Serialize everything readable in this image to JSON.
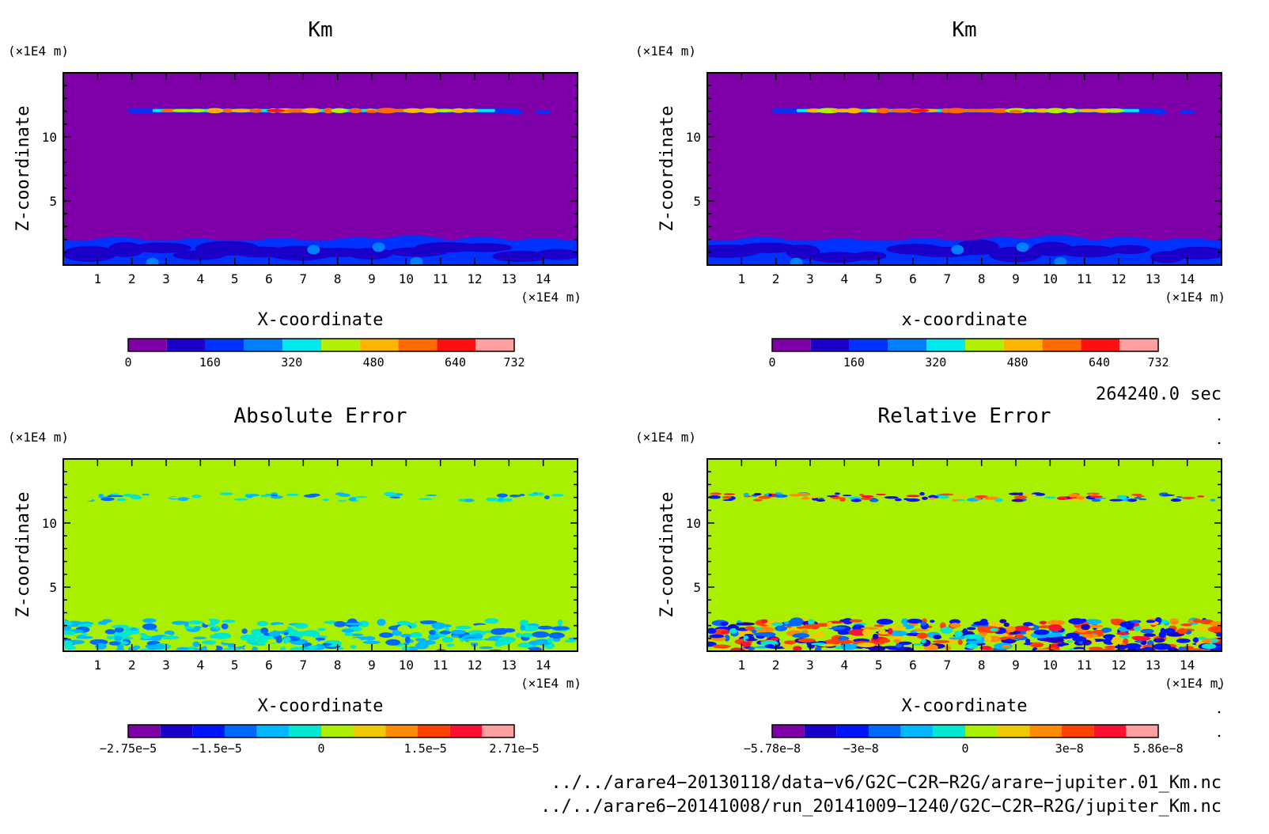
{
  "panels": [
    {
      "title": "Km",
      "xlabel": "X-coordinate",
      "ylabel": "Z-coordinate",
      "kind": "km",
      "colorbar": {
        "labels": [
          "0",
          "160",
          "320",
          "480",
          "640",
          "732"
        ]
      }
    },
    {
      "title": "Km",
      "xlabel": "x-coordinate",
      "ylabel": "Z-coordinate",
      "kind": "km",
      "colorbar": {
        "labels": [
          "0",
          "160",
          "320",
          "480",
          "640",
          "732"
        ]
      }
    },
    {
      "title": "Absolute Error",
      "xlabel": "X-coordinate",
      "ylabel": "Z-coordinate",
      "kind": "abs",
      "colorbar": {
        "labels": [
          "−2.75e−5",
          "−1.5e−5",
          "0",
          "1.5e−5",
          "2.71e−5"
        ]
      }
    },
    {
      "title": "Relative Error",
      "xlabel": "X-coordinate",
      "ylabel": "Z-coordinate",
      "kind": "rel",
      "colorbar": {
        "labels": [
          "−5.78e−8",
          "−3e−8",
          "0",
          "3e−8",
          "5.86e−8"
        ]
      }
    }
  ],
  "axis_unit": "(×1E4 m)",
  "xticks": [
    "1",
    "2",
    "3",
    "4",
    "5",
    "6",
    "7",
    "8",
    "9",
    "10",
    "11",
    "12",
    "13",
    "14"
  ],
  "yticks": [
    "5",
    "10"
  ],
  "time_label": "264240.0 sec",
  "file_paths": [
    "../../arare4−20130118/data−v6/G2C−C2R−R2G/arare−jupiter.01_Km.nc",
    "../../arare6−20141008/run_20141009−1240/G2C−C2R−R2G/jupiter_Km.nc"
  ],
  "colors": {
    "km_scale": [
      "#7f00a8",
      "#1a00c8",
      "#0032ff",
      "#0080ff",
      "#00e8f0",
      "#b0f000",
      "#ffb400",
      "#ff6a00",
      "#ff1010",
      "#ffa0a0"
    ],
    "err_scale": [
      "#7f00a8",
      "#1a00c8",
      "#0014ff",
      "#0068ff",
      "#00b8ff",
      "#00e8d0",
      "#a8f000",
      "#f0c800",
      "#ff8c00",
      "#ff4000",
      "#ff1030",
      "#ffa0a0"
    ],
    "abs_background": "#a8f000",
    "km_background": "#7f00a8"
  },
  "chart_data": [
    {
      "type": "heatmap",
      "title": "Km",
      "xlabel": "X-coordinate",
      "ylabel": "Z-coordinate",
      "x_unit": "(×1E4 m)",
      "y_unit": "(×1E4 m)",
      "xlim": [
        0,
        15
      ],
      "ylim": [
        0,
        15
      ],
      "colorbar": {
        "min": 0,
        "max": 732,
        "ticks": [
          0,
          160,
          320,
          480,
          640,
          732
        ]
      },
      "features": [
        {
          "z_range": [
            0,
            2
          ],
          "value_range": [
            80,
            320
          ],
          "description": ""
        },
        {
          "z_range": [
            11.5,
            12.3
          ],
          "value_range": [
            80,
            732
          ],
          "description": ""
        }
      ]
    },
    {
      "type": "heatmap",
      "title": "Km",
      "xlabel": "x-coordinate",
      "ylabel": "Z-coordinate",
      "x_unit": "(×1E4 m)",
      "y_unit": "(×1E4 m)",
      "xlim": [
        0,
        15
      ],
      "ylim": [
        0,
        15
      ],
      "colorbar": {
        "min": 0,
        "max": 732,
        "ticks": [
          0,
          160,
          320,
          480,
          640,
          732
        ]
      }
    },
    {
      "type": "heatmap",
      "title": "Absolute Error",
      "xlabel": "X-coordinate",
      "ylabel": "Z-coordinate",
      "xlim": [
        0,
        15
      ],
      "ylim": [
        0,
        15
      ],
      "colorbar": {
        "min": -2.75e-05,
        "max": 2.71e-05,
        "ticks": [
          -2.75e-05,
          -1.5e-05,
          0,
          1.5e-05,
          2.71e-05
        ]
      }
    },
    {
      "type": "heatmap",
      "title": "Relative Error",
      "xlabel": "X-coordinate",
      "ylabel": "Z-coordinate",
      "xlim": [
        0,
        15
      ],
      "ylim": [
        0,
        15
      ],
      "colorbar": {
        "min": -5.78e-08,
        "max": 5.86e-08,
        "ticks": [
          -5.78e-08,
          -3e-08,
          0,
          3e-08,
          5.86e-08
        ]
      }
    }
  ]
}
